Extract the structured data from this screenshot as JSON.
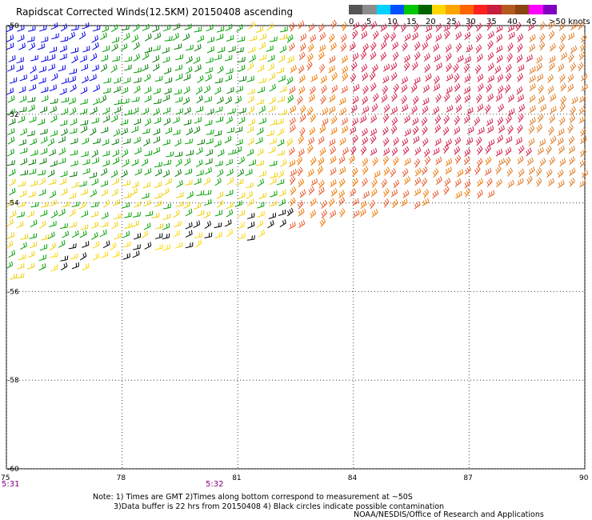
{
  "title": "Rapidscat Corrected Winds(12.5KM) 20150408 ascending",
  "legend": {
    "colors": [
      "#555555",
      "#8c8c8c",
      "#00d2ff",
      "#0050ff",
      "#00c800",
      "#006400",
      "#ffd700",
      "#ffa500",
      "#ff6400",
      "#ff2020",
      "#c81e3c",
      "#b45a1e",
      "#8b4513",
      "#ff00ff",
      "#8000c0"
    ],
    "labels": [
      "0",
      "5",
      "10",
      "15",
      "20",
      "25",
      "30",
      "35",
      "40",
      "45",
      ">50 knots"
    ]
  },
  "map": {
    "lat_labels": [
      "-50",
      "-52",
      "-54",
      "-56",
      "-58",
      "-60"
    ],
    "lon_labels": [
      "75",
      "78",
      "81",
      "84",
      "87",
      "90"
    ],
    "time_labels": [
      "5:31",
      "5:32"
    ],
    "lon_range": [
      75,
      90
    ],
    "lat_range": [
      -50,
      -60
    ]
  },
  "notes": {
    "line1": "Note: 1) Times are GMT 2)Times along bottom correspond to measurement at ~50S",
    "line2": "3)Data buffer is 22 hrs from 20150408 4) Black circles indicate possible contamination"
  },
  "credit": "NOAA/NESDIS/Office of Research and Applications"
}
